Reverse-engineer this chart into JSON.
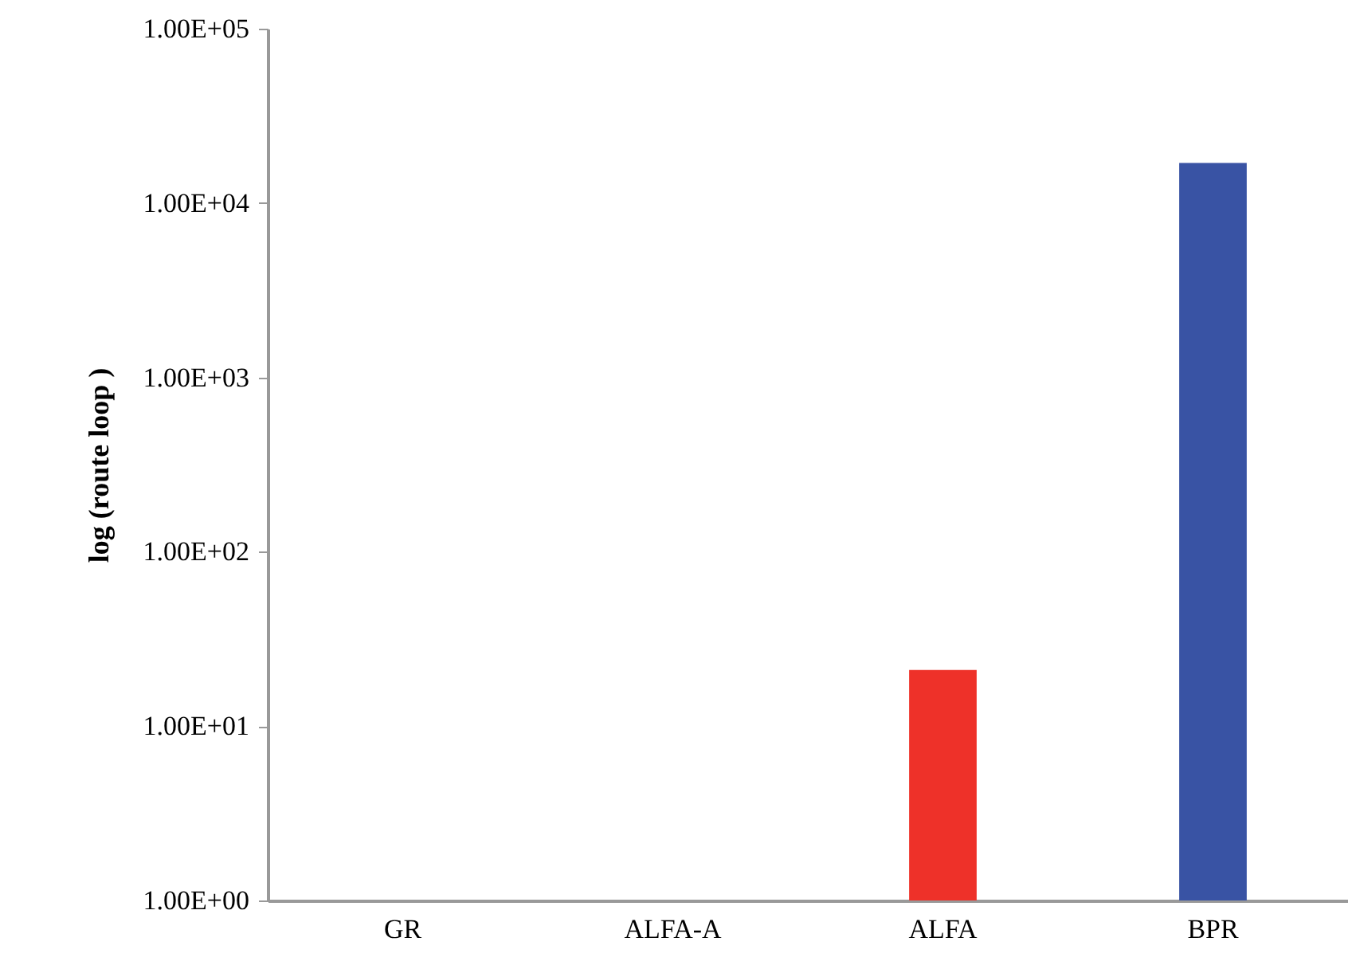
{
  "chart_data": {
    "type": "bar",
    "ylabel": "log (route loop )",
    "categories": [
      "GR",
      "ALFA-A",
      "ALFA",
      "BPR"
    ],
    "values": [
      null,
      null,
      21,
      17000
    ],
    "colors": [
      "#ee3129",
      "#ee3129",
      "#ee3129",
      "#3953a4"
    ],
    "log": true,
    "ylim": [
      1,
      100000
    ],
    "yticks": [
      {
        "value": 1,
        "label": "1.00E+00"
      },
      {
        "value": 10,
        "label": "1.00E+01"
      },
      {
        "value": 100,
        "label": "1.00E+02"
      },
      {
        "value": 1000,
        "label": "1.00E+03"
      },
      {
        "value": 10000,
        "label": "1.00E+04"
      },
      {
        "value": 100000,
        "label": "1.00E+05"
      }
    ],
    "grid": false
  }
}
